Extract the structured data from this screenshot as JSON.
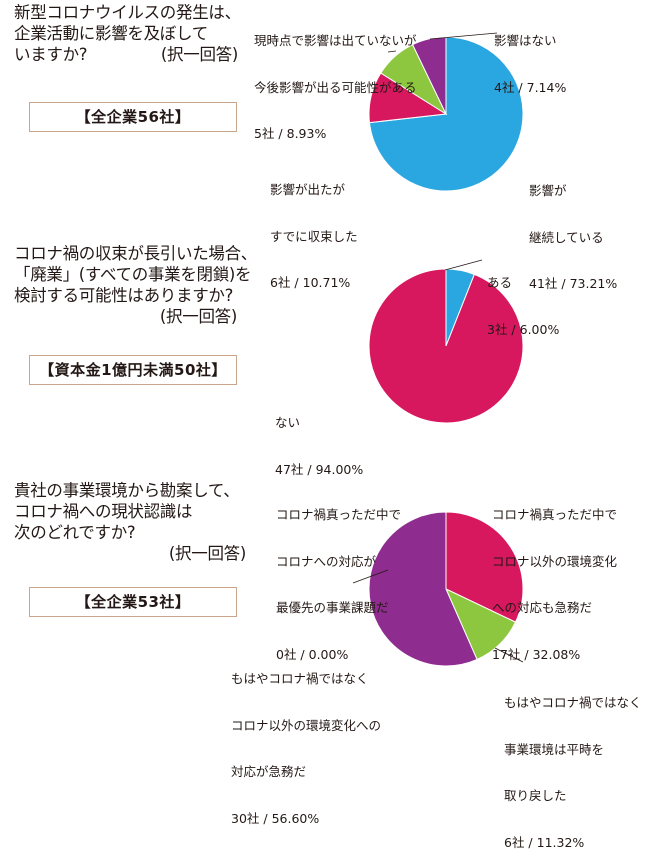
{
  "charts": [
    {
      "question": [
        "新型コロナウイルスの発生は、",
        "企業活動に影響を及ぼして",
        "いますか?"
      ],
      "note": "(択一回答)",
      "scope": "【全企業56社】"
    },
    {
      "question": [
        "コロナ禍の収束が長引いた場合、",
        "「廃業」(すべての事業を閉鎖)を",
        "検討する可能性はありますか?"
      ],
      "note": "(択一回答)",
      "scope": "【資本金1億円未満50社】"
    },
    {
      "question": [
        "貴社の事業環境から勘案して、",
        "コロナ禍への現状認識は",
        "次のどれですか?"
      ],
      "note": "(択一回答)",
      "scope": "【全企業53社】"
    }
  ],
  "chart_data": [
    {
      "type": "pie",
      "slices": [
        {
          "label": [
            "影響が",
            "継続している",
            "41社 / 73.21%"
          ],
          "value": 73.21,
          "count": 41,
          "color": "#2aa7e1"
        },
        {
          "label": [
            "影響が出たが",
            "すでに収束した",
            "6社 / 10.71%"
          ],
          "value": 10.71,
          "count": 6,
          "color": "#d7175e"
        },
        {
          "label": [
            "現時点で影響は出ていないが",
            "今後影響が出る可能性がある",
            "5社 / 8.93%"
          ],
          "value": 8.93,
          "count": 5,
          "color": "#8dc63f"
        },
        {
          "label": [
            "影響はない",
            "4社 / 7.14%"
          ],
          "value": 7.14,
          "count": 4,
          "color": "#8e2c8f"
        }
      ]
    },
    {
      "type": "pie",
      "slices": [
        {
          "label": [
            "ある",
            "3社 / 6.00%"
          ],
          "value": 6.0,
          "count": 3,
          "color": "#2aa7e1"
        },
        {
          "label": [
            "ない",
            "47社 / 94.00%"
          ],
          "value": 94.0,
          "count": 47,
          "color": "#d7175e"
        }
      ]
    },
    {
      "type": "pie",
      "slices": [
        {
          "label": [
            "コロナ禍真っただ中で",
            "コロナへの対応が",
            "最優先の事業課題だ",
            "0社 / 0.00%"
          ],
          "value": 0.0,
          "count": 0,
          "color": "#2aa7e1"
        },
        {
          "label": [
            "コロナ禍真っただ中で",
            "コロナ以外の環境変化",
            "への対応も急務だ",
            "17社 / 32.08%"
          ],
          "value": 32.08,
          "count": 17,
          "color": "#d7175e"
        },
        {
          "label": [
            "もはやコロナ禍ではなく",
            "事業環境は平時を",
            "取り戻した",
            "6社 / 11.32%"
          ],
          "value": 11.32,
          "count": 6,
          "color": "#8dc63f"
        },
        {
          "label": [
            "もはやコロナ禍ではなく",
            "コロナ以外の環境変化への",
            "対応が急務だ",
            "30社 / 56.60%"
          ],
          "value": 56.6,
          "count": 30,
          "color": "#8e2c8f"
        }
      ]
    }
  ]
}
